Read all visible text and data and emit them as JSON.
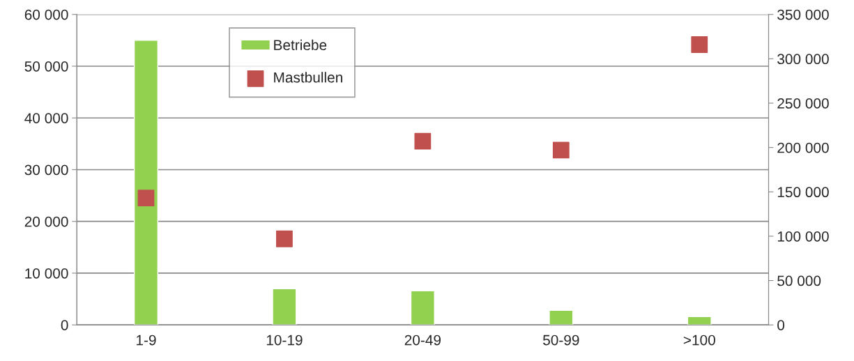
{
  "chart_data": {
    "type": "bar",
    "categories": [
      "1-9",
      "10-19",
      "20-49",
      "50-99",
      ">100"
    ],
    "series": [
      {
        "name": "Betriebe",
        "color": "#92d050",
        "values": [
          55000,
          7000,
          6600,
          2800,
          1600
        ]
      },
      {
        "name": "Mastbullen",
        "type": "scatter",
        "axis": "y2",
        "marker": "square",
        "color": "#c0504d",
        "x": [
          "1-9",
          "10-19",
          "20-49",
          "50-99",
          ">100"
        ],
        "values": [
          143000,
          97000,
          207000,
          197000,
          316000
        ]
      }
    ],
    "ylim": [
      0,
      60000
    ],
    "yticks": [
      {
        "value": 0,
        "label": "0"
      },
      {
        "value": 10000,
        "label": "10 000"
      },
      {
        "value": 20000,
        "label": "20 000"
      },
      {
        "value": 30000,
        "label": "30 000"
      },
      {
        "value": 40000,
        "label": "40 000"
      },
      {
        "value": 50000,
        "label": "50 000"
      },
      {
        "value": 60000,
        "label": "60 000"
      }
    ],
    "y2lim": [
      0,
      350000
    ],
    "y2ticks": [
      {
        "value": 0,
        "label": "0"
      },
      {
        "value": 50000,
        "label": "50 000"
      },
      {
        "value": 100000,
        "label": "100 000"
      },
      {
        "value": 150000,
        "label": "150 000"
      },
      {
        "value": 200000,
        "label": "200 000"
      },
      {
        "value": 250000,
        "label": "250 000"
      },
      {
        "value": 300000,
        "label": "300 000"
      },
      {
        "value": 350000,
        "label": "350 000"
      }
    ],
    "grid": "y",
    "legend": "top left"
  }
}
